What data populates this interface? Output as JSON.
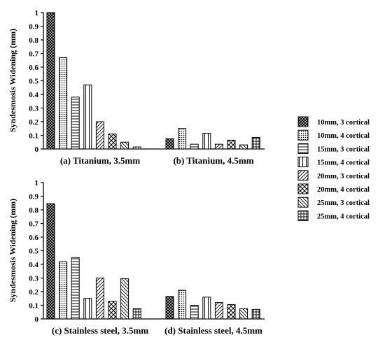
{
  "figure": {
    "ylabel": "Syndesmosis Widening (mm)",
    "yticks": [
      "0",
      "0.1",
      "0.2",
      "0.3",
      "0.4",
      "0.5",
      "0.6",
      "0.7",
      "0.8",
      "0.9",
      "1"
    ],
    "legend_entries": [
      "10mm, 3 cortical",
      "10mm, 4 cortical",
      "15mm, 3 cortical",
      "15mm, 4 cortical",
      "20mm, 3 cortical",
      "20mm, 4 cortical",
      "25mm, 3 cortical",
      "25mm, 4 cortical"
    ],
    "patterns": [
      "crosshatch-dense",
      "dots",
      "hlines",
      "vlines",
      "diag-right",
      "crosshatch",
      "diag-left",
      "grid"
    ]
  },
  "chart_data": [
    {
      "type": "bar",
      "title": "(a) Titanium, 3.5mm",
      "ylabel": "Syndesmosis Widening (mm)",
      "ylim": [
        0,
        1
      ],
      "series": [
        {
          "name": "10mm, 3 cortical",
          "values": [
            1.0
          ]
        },
        {
          "name": "10mm, 4 cortical",
          "values": [
            0.67
          ]
        },
        {
          "name": "15mm, 3 cortical",
          "values": [
            0.38
          ]
        },
        {
          "name": "15mm, 4 cortical",
          "values": [
            0.47
          ]
        },
        {
          "name": "20mm, 3 cortical",
          "values": [
            0.2
          ]
        },
        {
          "name": "20mm, 4 cortical",
          "values": [
            0.11
          ]
        },
        {
          "name": "25mm, 3 cortical",
          "values": [
            0.05
          ]
        },
        {
          "name": "25mm, 4 cortical",
          "values": [
            0.015
          ]
        }
      ]
    },
    {
      "type": "bar",
      "title": "(b) Titanium, 4.5mm",
      "ylim": [
        0,
        1
      ],
      "series": [
        {
          "name": "10mm, 3 cortical",
          "values": [
            0.075
          ]
        },
        {
          "name": "10mm, 4 cortical",
          "values": [
            0.15
          ]
        },
        {
          "name": "15mm, 3 cortical",
          "values": [
            0.035
          ]
        },
        {
          "name": "15mm, 4 cortical",
          "values": [
            0.115
          ]
        },
        {
          "name": "20mm, 3 cortical",
          "values": [
            0.035
          ]
        },
        {
          "name": "20mm, 4 cortical",
          "values": [
            0.065
          ]
        },
        {
          "name": "25mm, 3 cortical",
          "values": [
            0.03
          ]
        },
        {
          "name": "25mm, 4 cortical",
          "values": [
            0.085
          ]
        }
      ]
    },
    {
      "type": "bar",
      "title": "(c) Stainless steel, 3.5mm",
      "ylabel": "Syndesmosis Widening (mm)",
      "ylim": [
        0,
        1
      ],
      "series": [
        {
          "name": "10mm, 3 cortical",
          "values": [
            0.845
          ]
        },
        {
          "name": "10mm, 4 cortical",
          "values": [
            0.42
          ]
        },
        {
          "name": "15mm, 3 cortical",
          "values": [
            0.45
          ]
        },
        {
          "name": "15mm, 4 cortical",
          "values": [
            0.15
          ]
        },
        {
          "name": "20mm, 3 cortical",
          "values": [
            0.3
          ]
        },
        {
          "name": "20mm, 4 cortical",
          "values": [
            0.13
          ]
        },
        {
          "name": "25mm, 3 cortical",
          "values": [
            0.295
          ]
        },
        {
          "name": "25mm, 4 cortical",
          "values": [
            0.075
          ]
        }
      ]
    },
    {
      "type": "bar",
      "title": "(d) Stainless steel, 4.5mm",
      "ylim": [
        0,
        1
      ],
      "series": [
        {
          "name": "10mm, 3 cortical",
          "values": [
            0.165
          ]
        },
        {
          "name": "10mm, 4 cortical",
          "values": [
            0.21
          ]
        },
        {
          "name": "15mm, 3 cortical",
          "values": [
            0.1
          ]
        },
        {
          "name": "15mm, 4 cortical",
          "values": [
            0.16
          ]
        },
        {
          "name": "20mm, 3 cortical",
          "values": [
            0.12
          ]
        },
        {
          "name": "20mm, 4 cortical",
          "values": [
            0.105
          ]
        },
        {
          "name": "25mm, 3 cortical",
          "values": [
            0.075
          ]
        },
        {
          "name": "25mm, 4 cortical",
          "values": [
            0.07
          ]
        }
      ]
    }
  ]
}
